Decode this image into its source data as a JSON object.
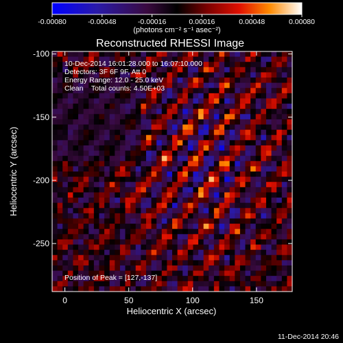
{
  "chart_data": {
    "type": "heatmap",
    "title": "Reconstructed RHESSI Image",
    "xlabel": "Heliocentric X (arcsec)",
    "ylabel": "Heliocentric Y (arcsec)",
    "xlim": [
      -10,
      178
    ],
    "ylim": [
      -288,
      -98
    ],
    "x_ticks": [
      "0",
      "50",
      "100",
      "150"
    ],
    "x_tick_values": [
      0,
      50,
      100,
      150
    ],
    "y_ticks": [
      "-100",
      "-150",
      "-200",
      "-250"
    ],
    "y_tick_values": [
      -100,
      -150,
      -200,
      -250
    ],
    "colorbar": {
      "ticks": [
        "-0.00080",
        "-0.00048",
        "-0.00016",
        "0.00016",
        "0.00048",
        "0.00080"
      ],
      "tick_values": [
        -0.0008,
        -0.00048,
        -0.00016,
        0.00016,
        0.00048,
        0.0008
      ],
      "range": [
        -0.0008,
        0.0008
      ],
      "label": "(photons cm⁻² s⁻¹ asec⁻²)"
    },
    "annotations": [
      "10-Dec-2014 16:01:28.000 to 16:07:10.000",
      "Detectors: 3F 6F 9F, Att 0",
      "Energy Range: 12.0 - 25.0 keV",
      "Clean    Total counts: 4.50E+03"
    ],
    "peak_label": "Position of Peak = [127,-137]",
    "peak": [
      127,
      -137
    ],
    "grid": false
  },
  "footer": {
    "timestamp": "11-Dec-2014 20:46"
  }
}
